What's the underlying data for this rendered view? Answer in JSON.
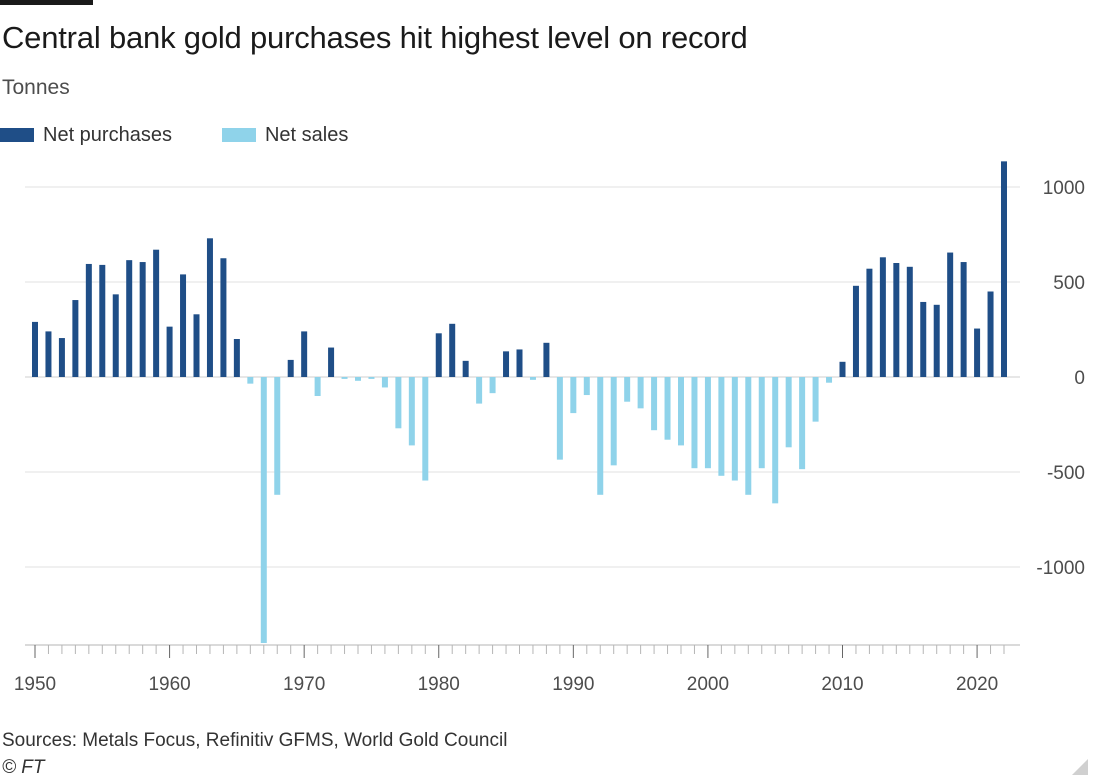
{
  "header": {
    "title": "Central bank gold purchases hit highest level on record",
    "subtitle": "Tonnes"
  },
  "footer": {
    "source": "Sources: Metals Focus, Refinitiv GFMS, World Gold Council",
    "credit": "© FT"
  },
  "colors": {
    "net_purchases": "#1f4e87",
    "net_sales": "#8fd3ea",
    "grid": "#e2e2e2",
    "axis": "#b5b5b5",
    "tick_text": "#4d4d4d"
  },
  "chart_data": {
    "type": "bar",
    "title": "Central bank gold purchases hit highest level on record",
    "ylabel": "Tonnes",
    "xlabel": "",
    "ylim": [
      -1400,
      1130
    ],
    "xlim": [
      1950,
      2022
    ],
    "y_ticks": [
      1000,
      500,
      0,
      -500,
      -1000
    ],
    "y_tick_labels": [
      "1000",
      "500",
      "0",
      "-500",
      "-1000"
    ],
    "x_ticks": [
      1950,
      1960,
      1970,
      1980,
      1990,
      2000,
      2010,
      2020
    ],
    "x_tick_labels": [
      "1950",
      "1960",
      "1970",
      "1980",
      "1990",
      "2000",
      "2010",
      "2020"
    ],
    "grid": true,
    "legend_position": "top-left",
    "series": [
      {
        "name": "Net purchases",
        "color": "#1f4e87"
      },
      {
        "name": "Net sales",
        "color": "#8fd3ea"
      }
    ],
    "years": [
      1950,
      1951,
      1952,
      1953,
      1954,
      1955,
      1956,
      1957,
      1958,
      1959,
      1960,
      1961,
      1962,
      1963,
      1964,
      1965,
      1966,
      1967,
      1968,
      1969,
      1970,
      1971,
      1972,
      1973,
      1974,
      1975,
      1976,
      1977,
      1978,
      1979,
      1980,
      1981,
      1982,
      1983,
      1984,
      1985,
      1986,
      1987,
      1988,
      1989,
      1990,
      1991,
      1992,
      1993,
      1994,
      1995,
      1996,
      1997,
      1998,
      1999,
      2000,
      2001,
      2002,
      2003,
      2004,
      2005,
      2006,
      2007,
      2008,
      2009,
      2010,
      2011,
      2012,
      2013,
      2014,
      2015,
      2016,
      2017,
      2018,
      2019,
      2020,
      2021,
      2022
    ],
    "values": [
      290,
      240,
      205,
      405,
      595,
      590,
      435,
      615,
      605,
      670,
      265,
      540,
      330,
      730,
      625,
      200,
      -35,
      -1400,
      -620,
      90,
      240,
      -100,
      155,
      -10,
      -20,
      -10,
      -55,
      -270,
      -360,
      -545,
      230,
      280,
      85,
      -140,
      -85,
      135,
      145,
      -15,
      180,
      -435,
      -190,
      -95,
      -620,
      -465,
      -130,
      -165,
      -280,
      -330,
      -360,
      -480,
      -480,
      -520,
      -545,
      -620,
      -480,
      -665,
      -370,
      -485,
      -235,
      -30,
      80,
      480,
      570,
      630,
      600,
      580,
      395,
      380,
      655,
      605,
      255,
      450,
      1135
    ]
  }
}
